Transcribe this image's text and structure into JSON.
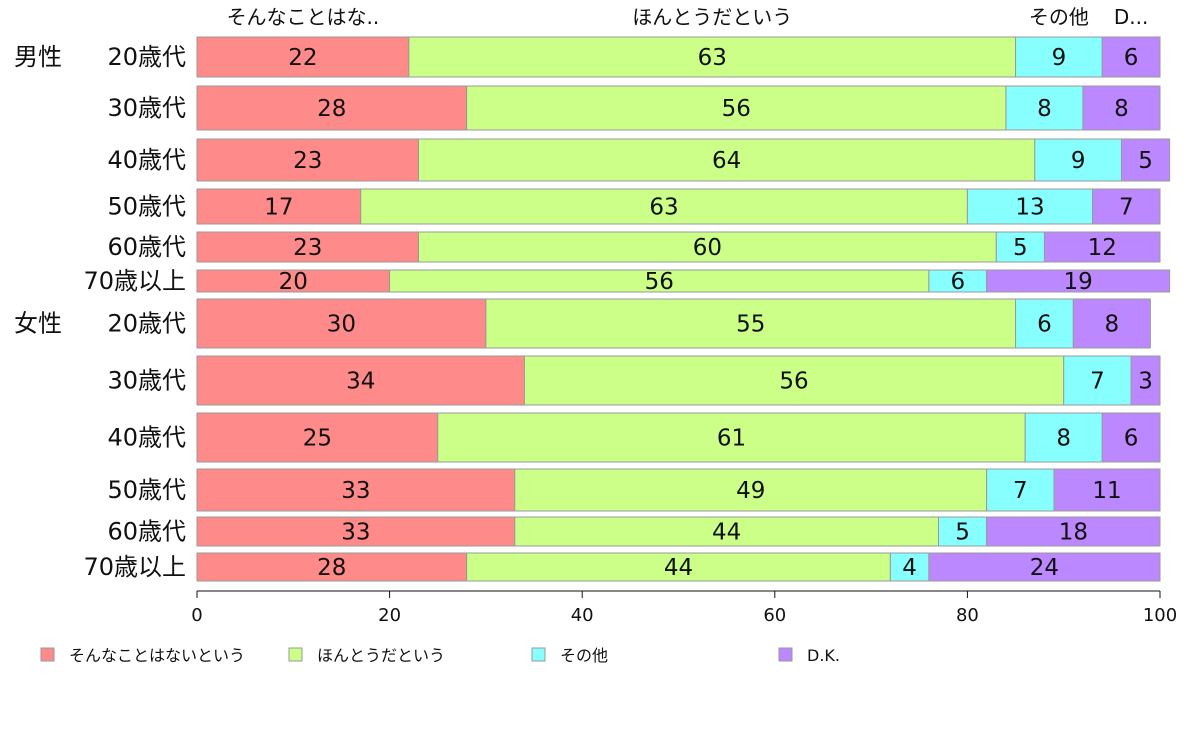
{
  "chart_data": {
    "type": "bar",
    "orientation": "horizontal-stacked",
    "xlim": [
      0,
      100
    ],
    "x_ticks": [
      0,
      20,
      40,
      60,
      80,
      100
    ],
    "group_labels": [
      {
        "label": "男性",
        "row": 0
      },
      {
        "label": "女性",
        "row": 6
      }
    ],
    "categories": [
      "20歳代",
      "30歳代",
      "40歳代",
      "50歳代",
      "60歳代",
      "70歳以上",
      "20歳代",
      "30歳代",
      "40歳代",
      "50歳代",
      "60歳代",
      "70歳以上"
    ],
    "series": [
      {
        "name": "そんなことはないという",
        "color": "#ff8a8a",
        "values": [
          22,
          28,
          23,
          17,
          23,
          20,
          30,
          34,
          25,
          33,
          33,
          28
        ]
      },
      {
        "name": "ほんとうだという",
        "color": "#ccff88",
        "values": [
          63,
          56,
          64,
          63,
          60,
          56,
          55,
          56,
          61,
          49,
          44,
          44
        ]
      },
      {
        "name": "その他",
        "color": "#88ffff",
        "values": [
          9,
          8,
          9,
          13,
          5,
          6,
          6,
          7,
          8,
          7,
          5,
          4
        ]
      },
      {
        "name": "D.K.",
        "color": "#bb88ff",
        "values": [
          6,
          8,
          5,
          7,
          12,
          19,
          8,
          3,
          6,
          11,
          18,
          24
        ]
      }
    ],
    "top_labels": [
      "そんなことはな..",
      "ほんとうだという",
      "その他",
      "D..."
    ],
    "legend": {
      "position": "bottom"
    },
    "grid": false
  }
}
